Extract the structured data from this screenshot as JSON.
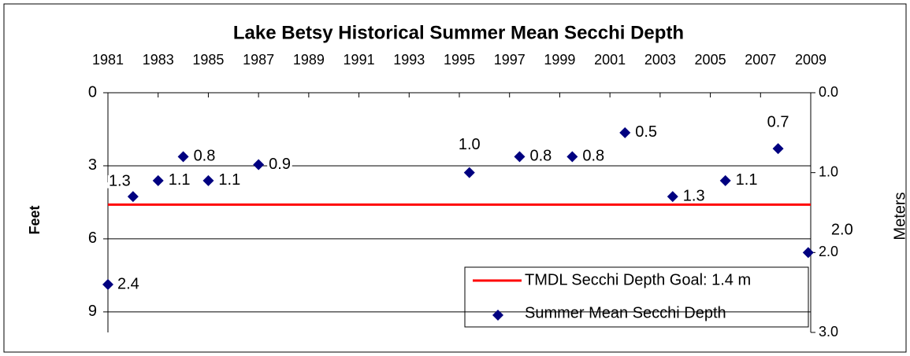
{
  "chart_data": {
    "type": "scatter",
    "title": "Lake Betsy Historical Summer Mean Secchi Depth",
    "ylabel": "Feet",
    "y2label": "Meters",
    "xlim": [
      1981,
      2009
    ],
    "xticks": [
      1981,
      1983,
      1985,
      1987,
      1989,
      1991,
      1993,
      1995,
      1997,
      1999,
      2001,
      2003,
      2005,
      2007,
      2009
    ],
    "ylim": [
      0,
      9.843
    ],
    "yticks": [
      0,
      3,
      6,
      9
    ],
    "y2lim": [
      0,
      3
    ],
    "y2ticks": [
      {
        "value": 0,
        "label": "0.0"
      },
      {
        "value": 1,
        "label": "1.0"
      },
      {
        "value": 2,
        "label": "2.0"
      },
      {
        "value": 3,
        "label": "3.0"
      }
    ],
    "inverted": true,
    "grid": true,
    "legend": "lower right",
    "series": [
      {
        "name": "TMDL Secchi Depth Goal: 1.4 m",
        "type": "line",
        "color": "#ff0000",
        "axis": "y2",
        "x": [
          1981,
          2009
        ],
        "values": [
          1.4,
          1.4
        ]
      },
      {
        "name": "Summer Mean Secchi Depth",
        "type": "scatter",
        "color": "#000080",
        "axis": "y2",
        "x": [
          1981,
          1982,
          1983,
          1984,
          1985,
          1987,
          1995.4,
          1997.4,
          1999.5,
          2001.6,
          2003.5,
          2005.6,
          2007.7,
          2008.9
        ],
        "values": [
          2.4,
          1.3,
          1.1,
          0.8,
          1.1,
          0.9,
          1.0,
          0.8,
          0.8,
          0.5,
          1.3,
          1.1,
          0.7,
          2.0
        ],
        "value_labels": [
          "2.4",
          "1.3",
          "1.1",
          "0.8",
          "1.1",
          "0.9",
          "1.0",
          "0.8",
          "0.8",
          "0.5",
          "1.3",
          "1.1",
          "0.7",
          "2.0"
        ]
      }
    ]
  }
}
